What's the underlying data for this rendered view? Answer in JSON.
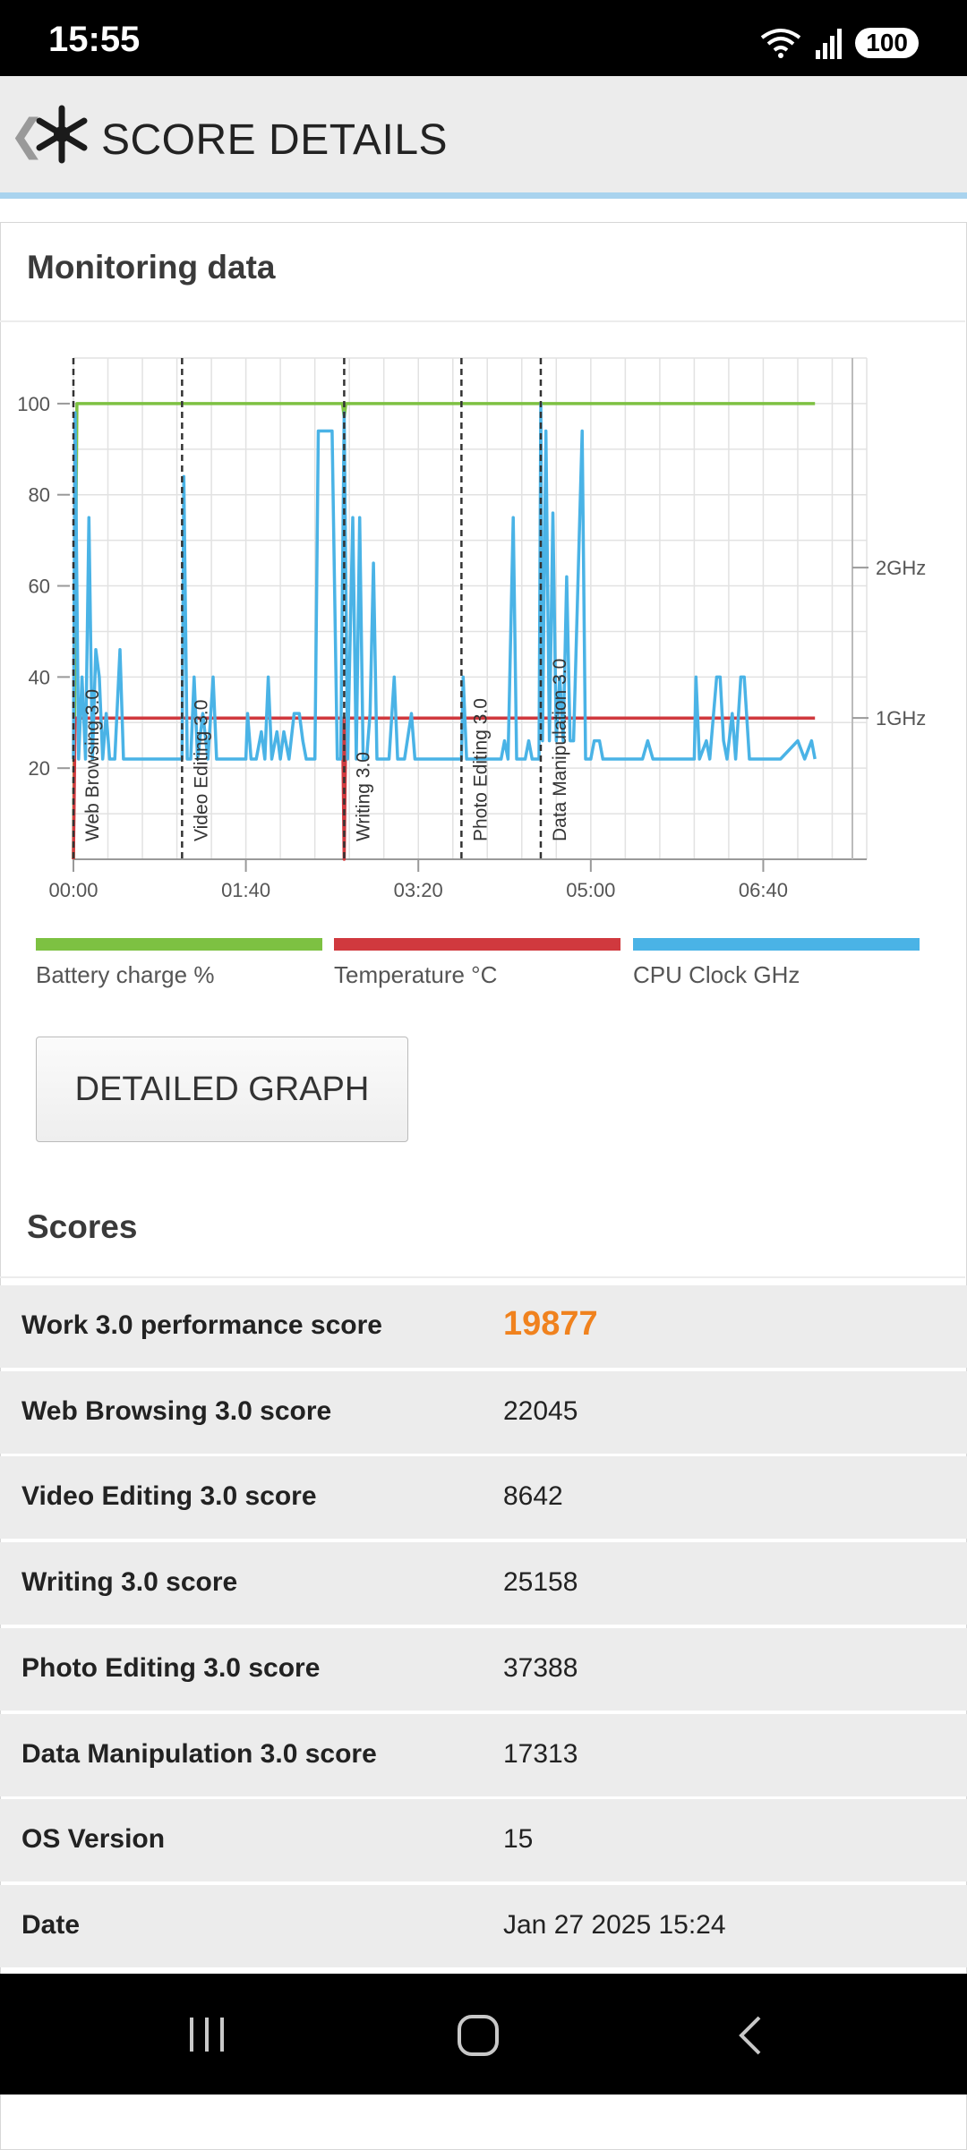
{
  "status": {
    "time": "15:55",
    "battery": "100"
  },
  "header": {
    "title": "SCORE DETAILS"
  },
  "monitoring": {
    "title": "Monitoring data"
  },
  "legend": [
    {
      "label": "Battery charge %",
      "color": "#7dc142"
    },
    {
      "label": "Temperature °C",
      "color": "#d0393e"
    },
    {
      "label": "CPU Clock GHz",
      "color": "#4ab3e6"
    }
  ],
  "detailed_button": "DETAILED GRAPH",
  "scores": {
    "title": "Scores",
    "rows": [
      {
        "label": "Work 3.0 performance score",
        "value": "19877",
        "highlight": true
      },
      {
        "label": "Web Browsing 3.0 score",
        "value": "22045"
      },
      {
        "label": "Video Editing 3.0 score",
        "value": "8642"
      },
      {
        "label": "Writing 3.0 score",
        "value": "25158"
      },
      {
        "label": "Photo Editing 3.0 score",
        "value": "37388"
      },
      {
        "label": "Data Manipulation 3.0 score",
        "value": "17313"
      },
      {
        "label": "OS Version",
        "value": "15"
      },
      {
        "label": "Date",
        "value": "Jan 27 2025 15:24"
      }
    ]
  },
  "chart_data": {
    "type": "line",
    "x_ticks": [
      "00:00",
      "01:40",
      "03:20",
      "05:00",
      "06:40"
    ],
    "y_ticks": [
      20,
      40,
      60,
      80,
      100
    ],
    "y_right_ticks": [
      "1GHz",
      "2GHz"
    ],
    "xlim_seconds": [
      0,
      460
    ],
    "ylim": [
      0,
      110
    ],
    "markers": [
      {
        "label": "Web Browsing 3.0",
        "t": 0
      },
      {
        "label": "Video Editing 3.0",
        "t": 63
      },
      {
        "label": "Writing 3.0",
        "t": 157
      },
      {
        "label": "Photo Editing 3.0",
        "t": 225
      },
      {
        "label": "Data Manipulation 3.0",
        "t": 271
      }
    ],
    "series": [
      {
        "name": "Battery charge %",
        "color": "#7dc142",
        "points": [
          [
            0,
            0
          ],
          [
            2,
            100
          ],
          [
            156,
            100
          ],
          [
            157,
            97
          ],
          [
            158,
            100
          ],
          [
            430,
            100
          ]
        ]
      },
      {
        "name": "Temperature °C",
        "color": "#d0393e",
        "points": [
          [
            0,
            0
          ],
          [
            1,
            31
          ],
          [
            156,
            31
          ],
          [
            157,
            0
          ],
          [
            158,
            31
          ],
          [
            430,
            31
          ]
        ]
      },
      {
        "name": "CPU Clock GHz",
        "color": "#4ab3e6",
        "points": [
          [
            0,
            22
          ],
          [
            1,
            98
          ],
          [
            3,
            22
          ],
          [
            5,
            40
          ],
          [
            7,
            22
          ],
          [
            9,
            75
          ],
          [
            11,
            22
          ],
          [
            13,
            46
          ],
          [
            15,
            40
          ],
          [
            17,
            22
          ],
          [
            19,
            32
          ],
          [
            21,
            22
          ],
          [
            24,
            22
          ],
          [
            27,
            46
          ],
          [
            29,
            22
          ],
          [
            35,
            22
          ],
          [
            40,
            22
          ],
          [
            50,
            22
          ],
          [
            60,
            22
          ],
          [
            63,
            22
          ],
          [
            64,
            84
          ],
          [
            66,
            22
          ],
          [
            68,
            22
          ],
          [
            70,
            40
          ],
          [
            72,
            22
          ],
          [
            75,
            32
          ],
          [
            78,
            22
          ],
          [
            81,
            40
          ],
          [
            83,
            22
          ],
          [
            90,
            22
          ],
          [
            100,
            22
          ],
          [
            101,
            32
          ],
          [
            103,
            22
          ],
          [
            106,
            22
          ],
          [
            109,
            28
          ],
          [
            111,
            22
          ],
          [
            113,
            40
          ],
          [
            115,
            22
          ],
          [
            118,
            28
          ],
          [
            120,
            22
          ],
          [
            122,
            28
          ],
          [
            125,
            22
          ],
          [
            128,
            32
          ],
          [
            131,
            32
          ],
          [
            133,
            26
          ],
          [
            135,
            22
          ],
          [
            140,
            22
          ],
          [
            142,
            94
          ],
          [
            150,
            94
          ],
          [
            153,
            22
          ],
          [
            155,
            22
          ],
          [
            157,
            98
          ],
          [
            159,
            22
          ],
          [
            162,
            75
          ],
          [
            164,
            22
          ],
          [
            166,
            75
          ],
          [
            168,
            22
          ],
          [
            170,
            22
          ],
          [
            172,
            32
          ],
          [
            174,
            65
          ],
          [
            176,
            22
          ],
          [
            180,
            22
          ],
          [
            183,
            22
          ],
          [
            186,
            40
          ],
          [
            188,
            22
          ],
          [
            192,
            22
          ],
          [
            196,
            32
          ],
          [
            198,
            22
          ],
          [
            210,
            22
          ],
          [
            220,
            22
          ],
          [
            225,
            22
          ],
          [
            226,
            40
          ],
          [
            228,
            22
          ],
          [
            232,
            22
          ],
          [
            236,
            22
          ],
          [
            240,
            22
          ],
          [
            248,
            22
          ],
          [
            250,
            26
          ],
          [
            252,
            22
          ],
          [
            255,
            75
          ],
          [
            257,
            22
          ],
          [
            262,
            22
          ],
          [
            264,
            26
          ],
          [
            266,
            22
          ],
          [
            270,
            22
          ],
          [
            271,
            100
          ],
          [
            272,
            26
          ],
          [
            274,
            94
          ],
          [
            276,
            26
          ],
          [
            278,
            76
          ],
          [
            280,
            26
          ],
          [
            282,
            40
          ],
          [
            284,
            26
          ],
          [
            286,
            62
          ],
          [
            288,
            26
          ],
          [
            290,
            26
          ],
          [
            295,
            94
          ],
          [
            297,
            22
          ],
          [
            300,
            22
          ],
          [
            302,
            26
          ],
          [
            305,
            26
          ],
          [
            307,
            22
          ],
          [
            310,
            22
          ],
          [
            320,
            22
          ],
          [
            330,
            22
          ],
          [
            333,
            26
          ],
          [
            336,
            22
          ],
          [
            345,
            22
          ],
          [
            360,
            22
          ],
          [
            361,
            40
          ],
          [
            363,
            22
          ],
          [
            367,
            26
          ],
          [
            369,
            22
          ],
          [
            373,
            40
          ],
          [
            375,
            40
          ],
          [
            377,
            26
          ],
          [
            379,
            22
          ],
          [
            382,
            32
          ],
          [
            384,
            22
          ],
          [
            387,
            40
          ],
          [
            389,
            40
          ],
          [
            392,
            22
          ],
          [
            400,
            22
          ],
          [
            410,
            22
          ],
          [
            420,
            26
          ],
          [
            424,
            22
          ],
          [
            428,
            26
          ],
          [
            430,
            22
          ]
        ]
      }
    ]
  }
}
